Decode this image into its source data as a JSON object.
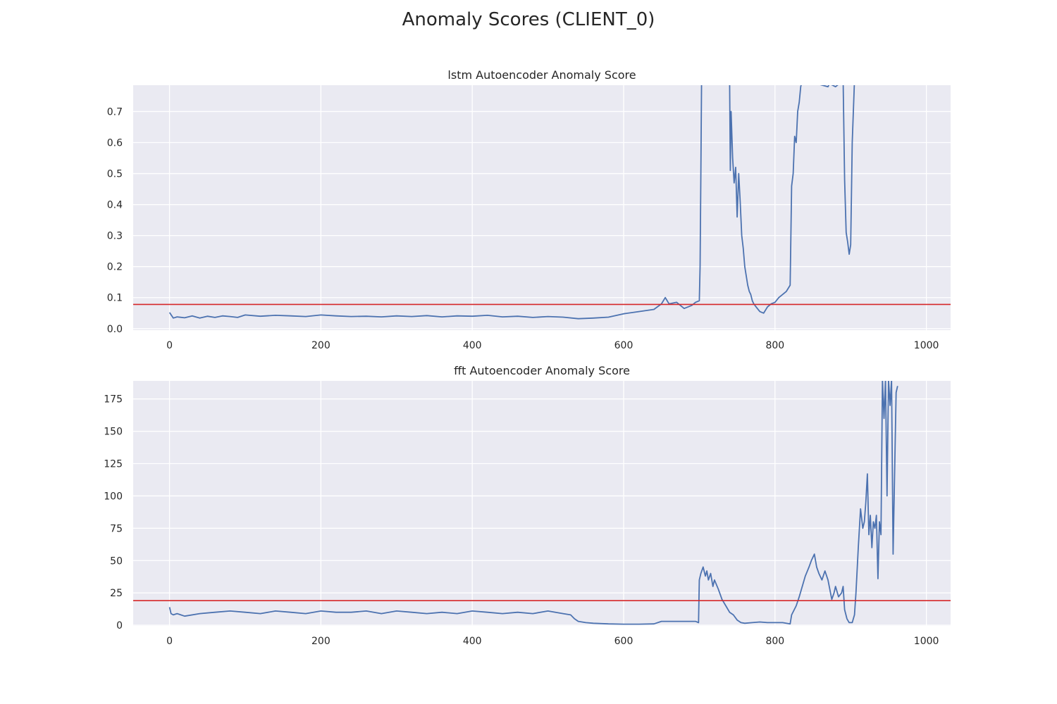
{
  "title": "Anomaly Scores (CLIENT_0)",
  "colors": {
    "axes_bg": "#eaeaf2",
    "grid": "#ffffff",
    "series": "#4c72b0",
    "threshold": "#d62728",
    "text": "#262626"
  },
  "chart_data": [
    {
      "type": "line",
      "title": "lstm Autoencoder Anomaly Score",
      "xlabel": "",
      "ylabel": "",
      "xlim": [
        -48,
        1032
      ],
      "ylim": [
        -0.005,
        0.785
      ],
      "xticks": [
        0,
        200,
        400,
        600,
        800,
        1000
      ],
      "xtick_labels": [
        "0",
        "200",
        "400",
        "600",
        "800",
        "1000"
      ],
      "yticks": [
        0.0,
        0.1,
        0.2,
        0.3,
        0.4,
        0.5,
        0.6,
        0.7
      ],
      "ytick_labels": [
        "0.0",
        "0.1",
        "0.2",
        "0.3",
        "0.4",
        "0.5",
        "0.6",
        "0.7"
      ],
      "grid": true,
      "threshold": 0.078,
      "series": [
        {
          "x": [
            0,
            5,
            10,
            20,
            30,
            40,
            50,
            60,
            70,
            80,
            90,
            100,
            120,
            140,
            160,
            180,
            200,
            220,
            240,
            260,
            280,
            300,
            320,
            340,
            360,
            380,
            400,
            420,
            440,
            460,
            480,
            500,
            520,
            540,
            560,
            580,
            600,
            620,
            640,
            650,
            655,
            660,
            670,
            680,
            690,
            695,
            700,
            701,
            702,
            703,
            740,
            741,
            742,
            744,
            746,
            748,
            750,
            752,
            754,
            756,
            758,
            760,
            762,
            764,
            766,
            768,
            770,
            772,
            775,
            780,
            785,
            790,
            795,
            800,
            805,
            810,
            815,
            820,
            822,
            824,
            826,
            828,
            830,
            832,
            834,
            836,
            840,
            870,
            872,
            880,
            890,
            892,
            894,
            896,
            898,
            900,
            901,
            902,
            905,
            906
          ],
          "values": [
            0.052,
            0.034,
            0.038,
            0.035,
            0.041,
            0.034,
            0.04,
            0.036,
            0.041,
            0.039,
            0.036,
            0.044,
            0.04,
            0.043,
            0.041,
            0.039,
            0.044,
            0.041,
            0.039,
            0.04,
            0.038,
            0.041,
            0.039,
            0.042,
            0.038,
            0.041,
            0.04,
            0.043,
            0.038,
            0.04,
            0.036,
            0.039,
            0.037,
            0.032,
            0.034,
            0.037,
            0.048,
            0.055,
            0.062,
            0.08,
            0.1,
            0.08,
            0.085,
            0.065,
            0.075,
            0.085,
            0.09,
            0.2,
            0.5,
            0.8,
            0.8,
            0.51,
            0.7,
            0.55,
            0.47,
            0.52,
            0.36,
            0.5,
            0.41,
            0.3,
            0.26,
            0.2,
            0.17,
            0.14,
            0.12,
            0.11,
            0.09,
            0.08,
            0.07,
            0.055,
            0.05,
            0.07,
            0.08,
            0.085,
            0.1,
            0.11,
            0.12,
            0.14,
            0.46,
            0.5,
            0.62,
            0.6,
            0.7,
            0.73,
            0.78,
            0.8,
            0.8,
            0.78,
            0.79,
            0.78,
            0.8,
            0.48,
            0.31,
            0.28,
            0.24,
            0.27,
            0.43,
            0.6,
            0.8,
            0.8
          ]
        }
      ]
    },
    {
      "type": "line",
      "title": "fft Autoencoder Anomaly Score",
      "xlabel": "",
      "ylabel": "",
      "xlim": [
        -48,
        1032
      ],
      "ylim": [
        -0.5,
        189
      ],
      "xticks": [
        0,
        200,
        400,
        600,
        800,
        1000
      ],
      "xtick_labels": [
        "0",
        "200",
        "400",
        "600",
        "800",
        "1000"
      ],
      "yticks": [
        0,
        25,
        50,
        75,
        100,
        125,
        150,
        175
      ],
      "ytick_labels": [
        "0",
        "25",
        "50",
        "75",
        "100",
        "125",
        "150",
        "175"
      ],
      "grid": true,
      "threshold": 19,
      "series": [
        {
          "x": [
            0,
            2,
            5,
            10,
            20,
            40,
            60,
            80,
            100,
            120,
            140,
            160,
            180,
            200,
            220,
            240,
            260,
            280,
            300,
            320,
            340,
            360,
            380,
            400,
            420,
            440,
            460,
            480,
            500,
            520,
            530,
            535,
            540,
            550,
            560,
            580,
            600,
            620,
            640,
            650,
            660,
            680,
            695,
            699,
            700,
            702,
            705,
            708,
            710,
            712,
            715,
            718,
            720,
            725,
            730,
            735,
            740,
            745,
            750,
            755,
            760,
            770,
            780,
            790,
            800,
            810,
            820,
            822,
            828,
            832,
            836,
            840,
            845,
            848,
            852,
            855,
            858,
            862,
            866,
            870,
            875,
            878,
            880,
            884,
            888,
            890,
            892,
            895,
            898,
            902,
            905,
            907,
            910,
            913,
            916,
            918,
            920,
            922,
            924,
            926,
            928,
            930,
            932,
            934,
            936,
            938,
            940,
            942,
            944,
            946,
            948,
            950,
            952,
            954,
            956,
            960,
            962
          ],
          "values": [
            14,
            9,
            8,
            9,
            7,
            9,
            10,
            11,
            10,
            9,
            11,
            10,
            9,
            11,
            10,
            10,
            11,
            9,
            11,
            10,
            9,
            10,
            9,
            11,
            10,
            9,
            10,
            9,
            11,
            9,
            8,
            5,
            3,
            2,
            1.5,
            1,
            0.8,
            0.8,
            1,
            3,
            3,
            3,
            3,
            2,
            35,
            40,
            45,
            38,
            42,
            35,
            40,
            30,
            35,
            28,
            20,
            15,
            10,
            8,
            4,
            2,
            1.5,
            2,
            2.5,
            2,
            2,
            2,
            1,
            8,
            15,
            22,
            30,
            38,
            45,
            50,
            55,
            45,
            40,
            35,
            42,
            35,
            20,
            25,
            30,
            22,
            25,
            30,
            12,
            5,
            2,
            2,
            8,
            25,
            60,
            90,
            75,
            80,
            95,
            117,
            70,
            85,
            60,
            80,
            75,
            85,
            36,
            80,
            70,
            190,
            160,
            190,
            100,
            190,
            170,
            190,
            55,
            180,
            185
          ]
        }
      ]
    }
  ]
}
